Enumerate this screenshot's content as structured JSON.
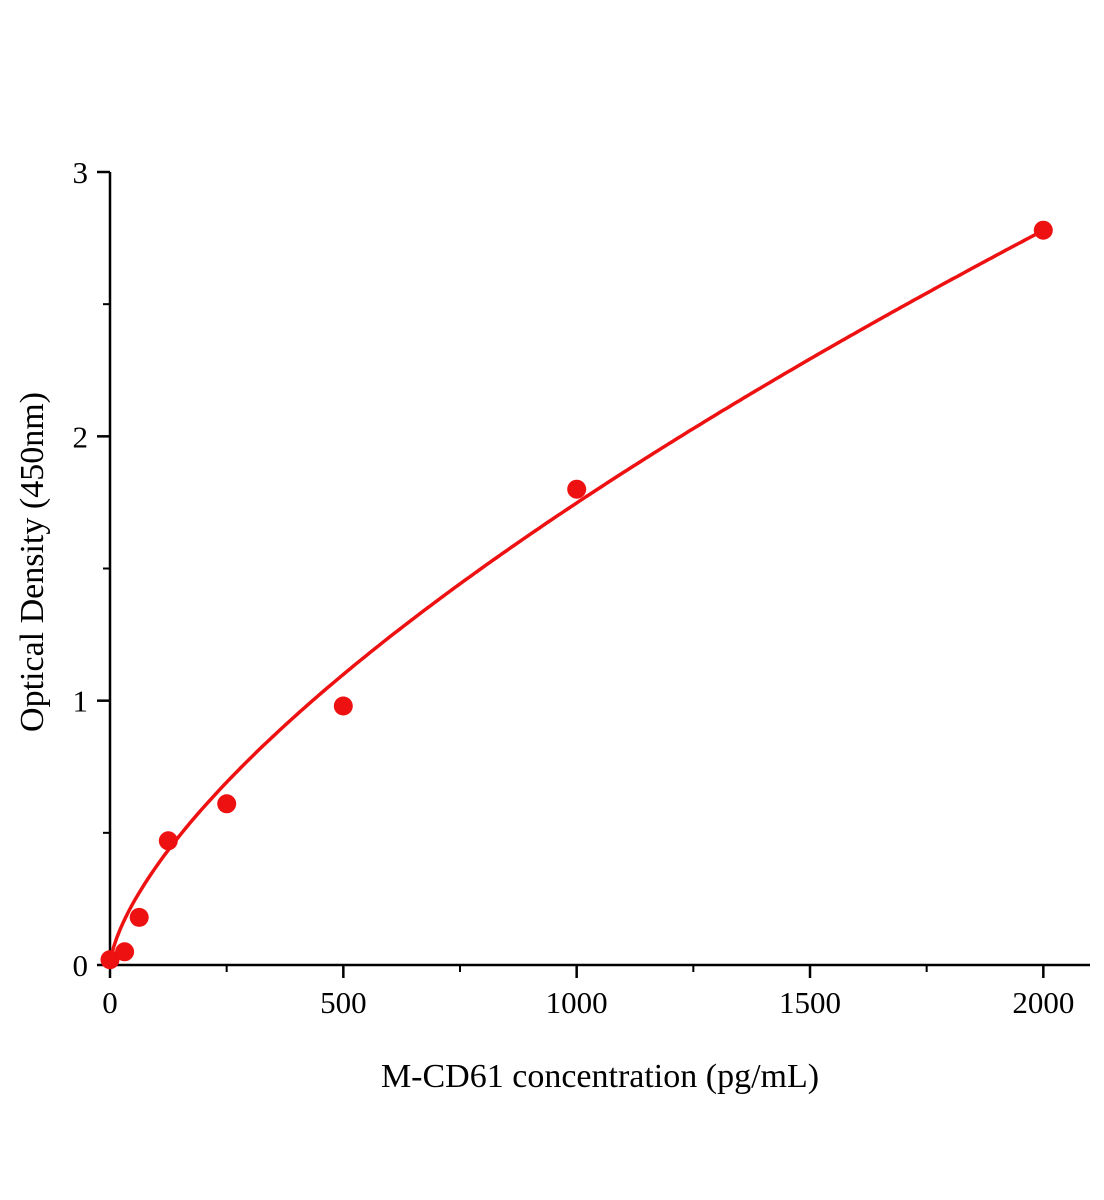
{
  "chart_data": {
    "type": "scatter",
    "title": "",
    "xlabel": "M-CD61 concentration (pg/mL)",
    "ylabel": "Optical Density (450nm)",
    "x": [
      0,
      31.25,
      62.5,
      125,
      250,
      500,
      1000,
      2000
    ],
    "y": [
      0.02,
      0.05,
      0.18,
      0.47,
      0.61,
      0.98,
      1.8,
      2.78
    ],
    "xlim": [
      0,
      2100
    ],
    "ylim": [
      0,
      3
    ],
    "xticks": [
      0,
      500,
      1000,
      1500,
      2000
    ],
    "xticks_minor": [
      250,
      750,
      1250,
      1750
    ],
    "yticks": [
      0,
      1,
      2,
      3
    ],
    "yticks_minor": [
      0.5,
      1.5,
      2.5
    ],
    "grid": false,
    "legend": "none",
    "marker_color": "#ee1111",
    "line_color": "#ee1111",
    "axis_color": "#000000",
    "background": "#ffffff",
    "fit": {
      "type": "power",
      "a": 0.0172,
      "b": 0.669
    }
  }
}
